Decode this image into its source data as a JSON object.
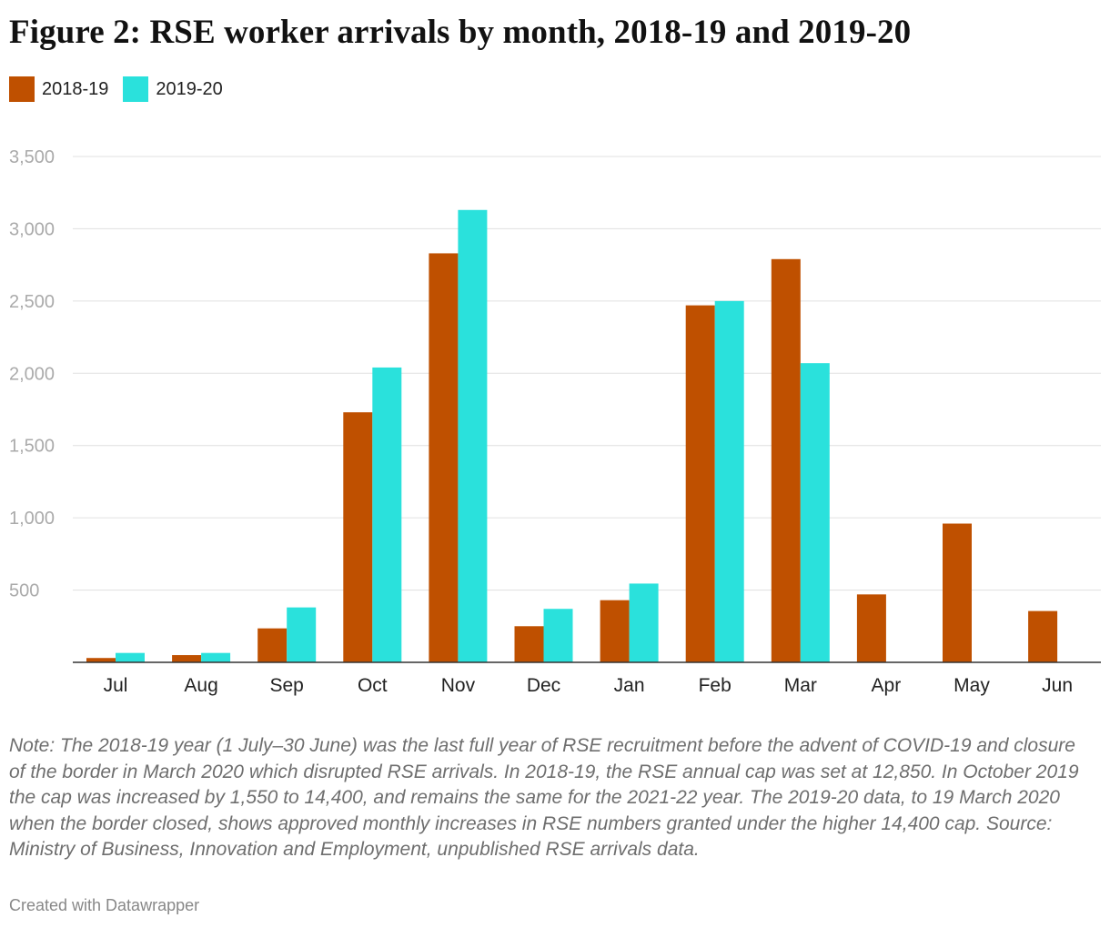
{
  "title": "Figure 2: RSE worker arrivals by month, 2018-19 and 2019-20",
  "colors": {
    "s2018": "#bf5000",
    "s2019": "#2ae1dc",
    "grid": "#e0e0e0",
    "axis": "#333333",
    "tick": "#aaaaaa"
  },
  "legend": [
    {
      "label": "2018-19",
      "color": "#bf5000"
    },
    {
      "label": "2019-20",
      "color": "#2ae1dc"
    }
  ],
  "chart_data": {
    "type": "bar",
    "title": "Figure 2: RSE worker arrivals by month, 2018-19 and 2019-20",
    "categories": [
      "Jul",
      "Aug",
      "Sep",
      "Oct",
      "Nov",
      "Dec",
      "Jan",
      "Feb",
      "Mar",
      "Apr",
      "May",
      "Jun"
    ],
    "series": [
      {
        "name": "2018-19",
        "color": "#bf5000",
        "values": [
          30,
          50,
          235,
          1730,
          2830,
          250,
          430,
          2470,
          2790,
          470,
          960,
          355
        ]
      },
      {
        "name": "2019-20",
        "color": "#2ae1dc",
        "values": [
          65,
          65,
          380,
          2040,
          3130,
          370,
          545,
          2500,
          2070,
          null,
          null,
          null
        ]
      }
    ],
    "yticks": [
      500,
      1000,
      1500,
      2000,
      2500,
      3000,
      3500
    ],
    "ytick_labels": [
      "500",
      "1,000",
      "1,500",
      "2,000",
      "2,500",
      "3,000",
      "3,500"
    ],
    "ylim": [
      0,
      3500
    ],
    "xlabel": "",
    "ylabel": "",
    "grid": true,
    "legend_position": "top-left"
  },
  "note": "Note: The 2018-19 year (1 July–30 June) was the last full year of RSE recruitment before the advent of COVID-19 and closure of the border in March 2020 which disrupted RSE arrivals. In 2018-19, the RSE annual cap was set at 12,850. In October 2019 the cap was increased by 1,550 to 14,400, and remains the same for the 2021-22 year. The 2019-20 data, to 19 March 2020 when the border closed, shows approved monthly increases in RSE numbers granted under the higher 14,400 cap. Source: Ministry of Business, Innovation and Employment, unpublished RSE arrivals data.",
  "credit": "Created with Datawrapper"
}
